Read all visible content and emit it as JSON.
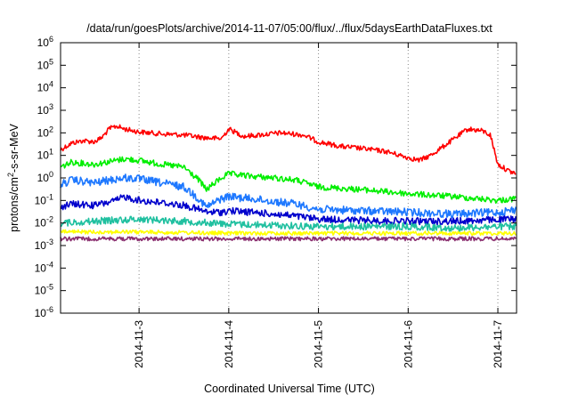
{
  "chart_data": {
    "type": "line",
    "title": "/data/run/goesPlots/archive/2014-11-07/05:00/flux/../flux/5daysEarthDataFluxes.txt",
    "xlabel": "Coordinated Universal Time (UTC)",
    "ylabel": {
      "prefix": "protons/cm",
      "sup": "2",
      "suffix": "-s-sr-MeV"
    },
    "yscale": "log",
    "ylim": [
      1e-06,
      1000000.0
    ],
    "xlim": [
      "2014-11-02T03:00",
      "2014-11-07T05:00"
    ],
    "x_ticks": [
      {
        "x": "2014-11-03T00:00",
        "label": "2014-11-3"
      },
      {
        "x": "2014-11-04T00:00",
        "label": "2014-11-4"
      },
      {
        "x": "2014-11-05T00:00",
        "label": "2014-11-5"
      },
      {
        "x": "2014-11-06T00:00",
        "label": "2014-11-6"
      },
      {
        "x": "2014-11-07T00:00",
        "label": "2014-11-7"
      }
    ],
    "y_ticks": [
      {
        "value": 1e-06,
        "base": "10",
        "exp": "-6"
      },
      {
        "value": 1e-05,
        "base": "10",
        "exp": "-5"
      },
      {
        "value": 0.0001,
        "base": "10",
        "exp": "-4"
      },
      {
        "value": 0.001,
        "base": "10",
        "exp": "-3"
      },
      {
        "value": 0.01,
        "base": "10",
        "exp": "-2"
      },
      {
        "value": 0.1,
        "base": "10",
        "exp": "-1"
      },
      {
        "value": 1,
        "base": "10",
        "exp": "0"
      },
      {
        "value": 10,
        "base": "10",
        "exp": "1"
      },
      {
        "value": 100,
        "base": "10",
        "exp": "2"
      },
      {
        "value": 1000,
        "base": "10",
        "exp": "3"
      },
      {
        "value": 10000.0,
        "base": "10",
        "exp": "4"
      },
      {
        "value": 100000.0,
        "base": "10",
        "exp": "5"
      },
      {
        "value": 1000000.0,
        "base": "10",
        "exp": "6"
      }
    ],
    "grid": "vertical dotted at day ticks",
    "legend": "none",
    "series": [
      {
        "color": "#ff0000",
        "x": [
          "2014-11-02T03:00",
          "2014-11-02T06:00",
          "2014-11-02T09:00",
          "2014-11-02T12:00",
          "2014-11-02T14:00",
          "2014-11-02T16:00",
          "2014-11-02T18:00",
          "2014-11-02T20:00",
          "2014-11-03T00:00",
          "2014-11-03T06:00",
          "2014-11-03T12:00",
          "2014-11-03T18:00",
          "2014-11-03T22:00",
          "2014-11-04T00:00",
          "2014-11-04T04:00",
          "2014-11-04T08:00",
          "2014-11-04T14:00",
          "2014-11-04T20:00",
          "2014-11-05T00:00",
          "2014-11-05T06:00",
          "2014-11-05T12:00",
          "2014-11-05T18:00",
          "2014-11-06T00:00",
          "2014-11-06T03:00",
          "2014-11-06T06:00",
          "2014-11-06T12:00",
          "2014-11-06T16:00",
          "2014-11-06T20:00",
          "2014-11-06T22:00",
          "2014-11-07T00:00",
          "2014-11-07T03:00",
          "2014-11-07T05:00"
        ],
        "y": [
          18,
          35,
          45,
          40,
          60,
          150,
          200,
          150,
          110,
          90,
          80,
          60,
          55,
          150,
          70,
          80,
          100,
          80,
          40,
          25,
          20,
          15,
          8,
          6,
          10,
          50,
          150,
          120,
          80,
          4,
          2,
          1.5
        ]
      },
      {
        "color": "#00ee00",
        "x": [
          "2014-11-02T03:00",
          "2014-11-02T06:00",
          "2014-11-02T12:00",
          "2014-11-02T18:00",
          "2014-11-02T20:00",
          "2014-11-03T00:00",
          "2014-11-03T06:00",
          "2014-11-03T12:00",
          "2014-11-03T16:00",
          "2014-11-03T18:00",
          "2014-11-03T22:00",
          "2014-11-04T00:00",
          "2014-11-04T06:00",
          "2014-11-04T12:00",
          "2014-11-04T18:00",
          "2014-11-05T00:00",
          "2014-11-05T12:00",
          "2014-11-06T00:00",
          "2014-11-06T12:00",
          "2014-11-07T00:00",
          "2014-11-07T05:00"
        ],
        "y": [
          3,
          5,
          4,
          6,
          7,
          6,
          4,
          3,
          0.8,
          0.3,
          1,
          1.5,
          1.2,
          1,
          0.8,
          0.4,
          0.3,
          0.2,
          0.15,
          0.1,
          0.12
        ]
      },
      {
        "color": "#1e78ff",
        "x": [
          "2014-11-02T03:00",
          "2014-11-02T06:00",
          "2014-11-02T12:00",
          "2014-11-02T18:00",
          "2014-11-02T20:00",
          "2014-11-03T00:00",
          "2014-11-03T06:00",
          "2014-11-03T12:00",
          "2014-11-03T16:00",
          "2014-11-03T18:00",
          "2014-11-03T22:00",
          "2014-11-04T00:00",
          "2014-11-04T06:00",
          "2014-11-04T12:00",
          "2014-11-04T18:00",
          "2014-11-05T00:00",
          "2014-11-05T12:00",
          "2014-11-06T00:00",
          "2014-11-06T12:00",
          "2014-11-07T00:00",
          "2014-11-07T05:00"
        ],
        "y": [
          0.5,
          0.8,
          0.6,
          0.9,
          1,
          0.9,
          0.6,
          0.4,
          0.12,
          0.05,
          0.12,
          0.15,
          0.12,
          0.09,
          0.07,
          0.04,
          0.035,
          0.03,
          0.025,
          0.03,
          0.04
        ]
      },
      {
        "color": "#0000cc",
        "x": [
          "2014-11-02T03:00",
          "2014-11-02T06:00",
          "2014-11-02T12:00",
          "2014-11-02T18:00",
          "2014-11-02T20:00",
          "2014-11-03T00:00",
          "2014-11-03T06:00",
          "2014-11-03T12:00",
          "2014-11-03T16:00",
          "2014-11-03T18:00",
          "2014-11-03T22:00",
          "2014-11-04T00:00",
          "2014-11-04T06:00",
          "2014-11-04T12:00",
          "2014-11-04T18:00",
          "2014-11-05T00:00",
          "2014-11-05T12:00",
          "2014-11-06T00:00",
          "2014-11-06T12:00",
          "2014-11-07T00:00",
          "2014-11-07T05:00"
        ],
        "y": [
          0.05,
          0.07,
          0.06,
          0.1,
          0.15,
          0.1,
          0.08,
          0.06,
          0.04,
          0.03,
          0.03,
          0.035,
          0.03,
          0.025,
          0.02,
          0.015,
          0.013,
          0.012,
          0.012,
          0.014,
          0.015
        ]
      },
      {
        "color": "#20c0a0",
        "x": [
          "2014-11-02T03:00",
          "2014-11-02T12:00",
          "2014-11-03T00:00",
          "2014-11-03T12:00",
          "2014-11-04T00:00",
          "2014-11-04T12:00",
          "2014-11-05T00:00",
          "2014-11-05T12:00",
          "2014-11-06T00:00",
          "2014-11-06T12:00",
          "2014-11-07T00:00",
          "2014-11-07T05:00"
        ],
        "y": [
          0.01,
          0.012,
          0.015,
          0.012,
          0.009,
          0.008,
          0.007,
          0.007,
          0.007,
          0.006,
          0.007,
          0.007
        ]
      },
      {
        "color": "#ffff00",
        "x": [
          "2014-11-02T03:00",
          "2014-11-03T00:00",
          "2014-11-04T00:00",
          "2014-11-05T00:00",
          "2014-11-06T00:00",
          "2014-11-07T05:00"
        ],
        "y": [
          0.004,
          0.004,
          0.0035,
          0.0035,
          0.0035,
          0.0035
        ]
      },
      {
        "color": "#8b3070",
        "x": [
          "2014-11-02T03:00",
          "2014-11-03T00:00",
          "2014-11-04T00:00",
          "2014-11-05T00:00",
          "2014-11-06T00:00",
          "2014-11-07T05:00"
        ],
        "y": [
          0.002,
          0.002,
          0.002,
          0.002,
          0.002,
          0.002
        ]
      }
    ]
  }
}
